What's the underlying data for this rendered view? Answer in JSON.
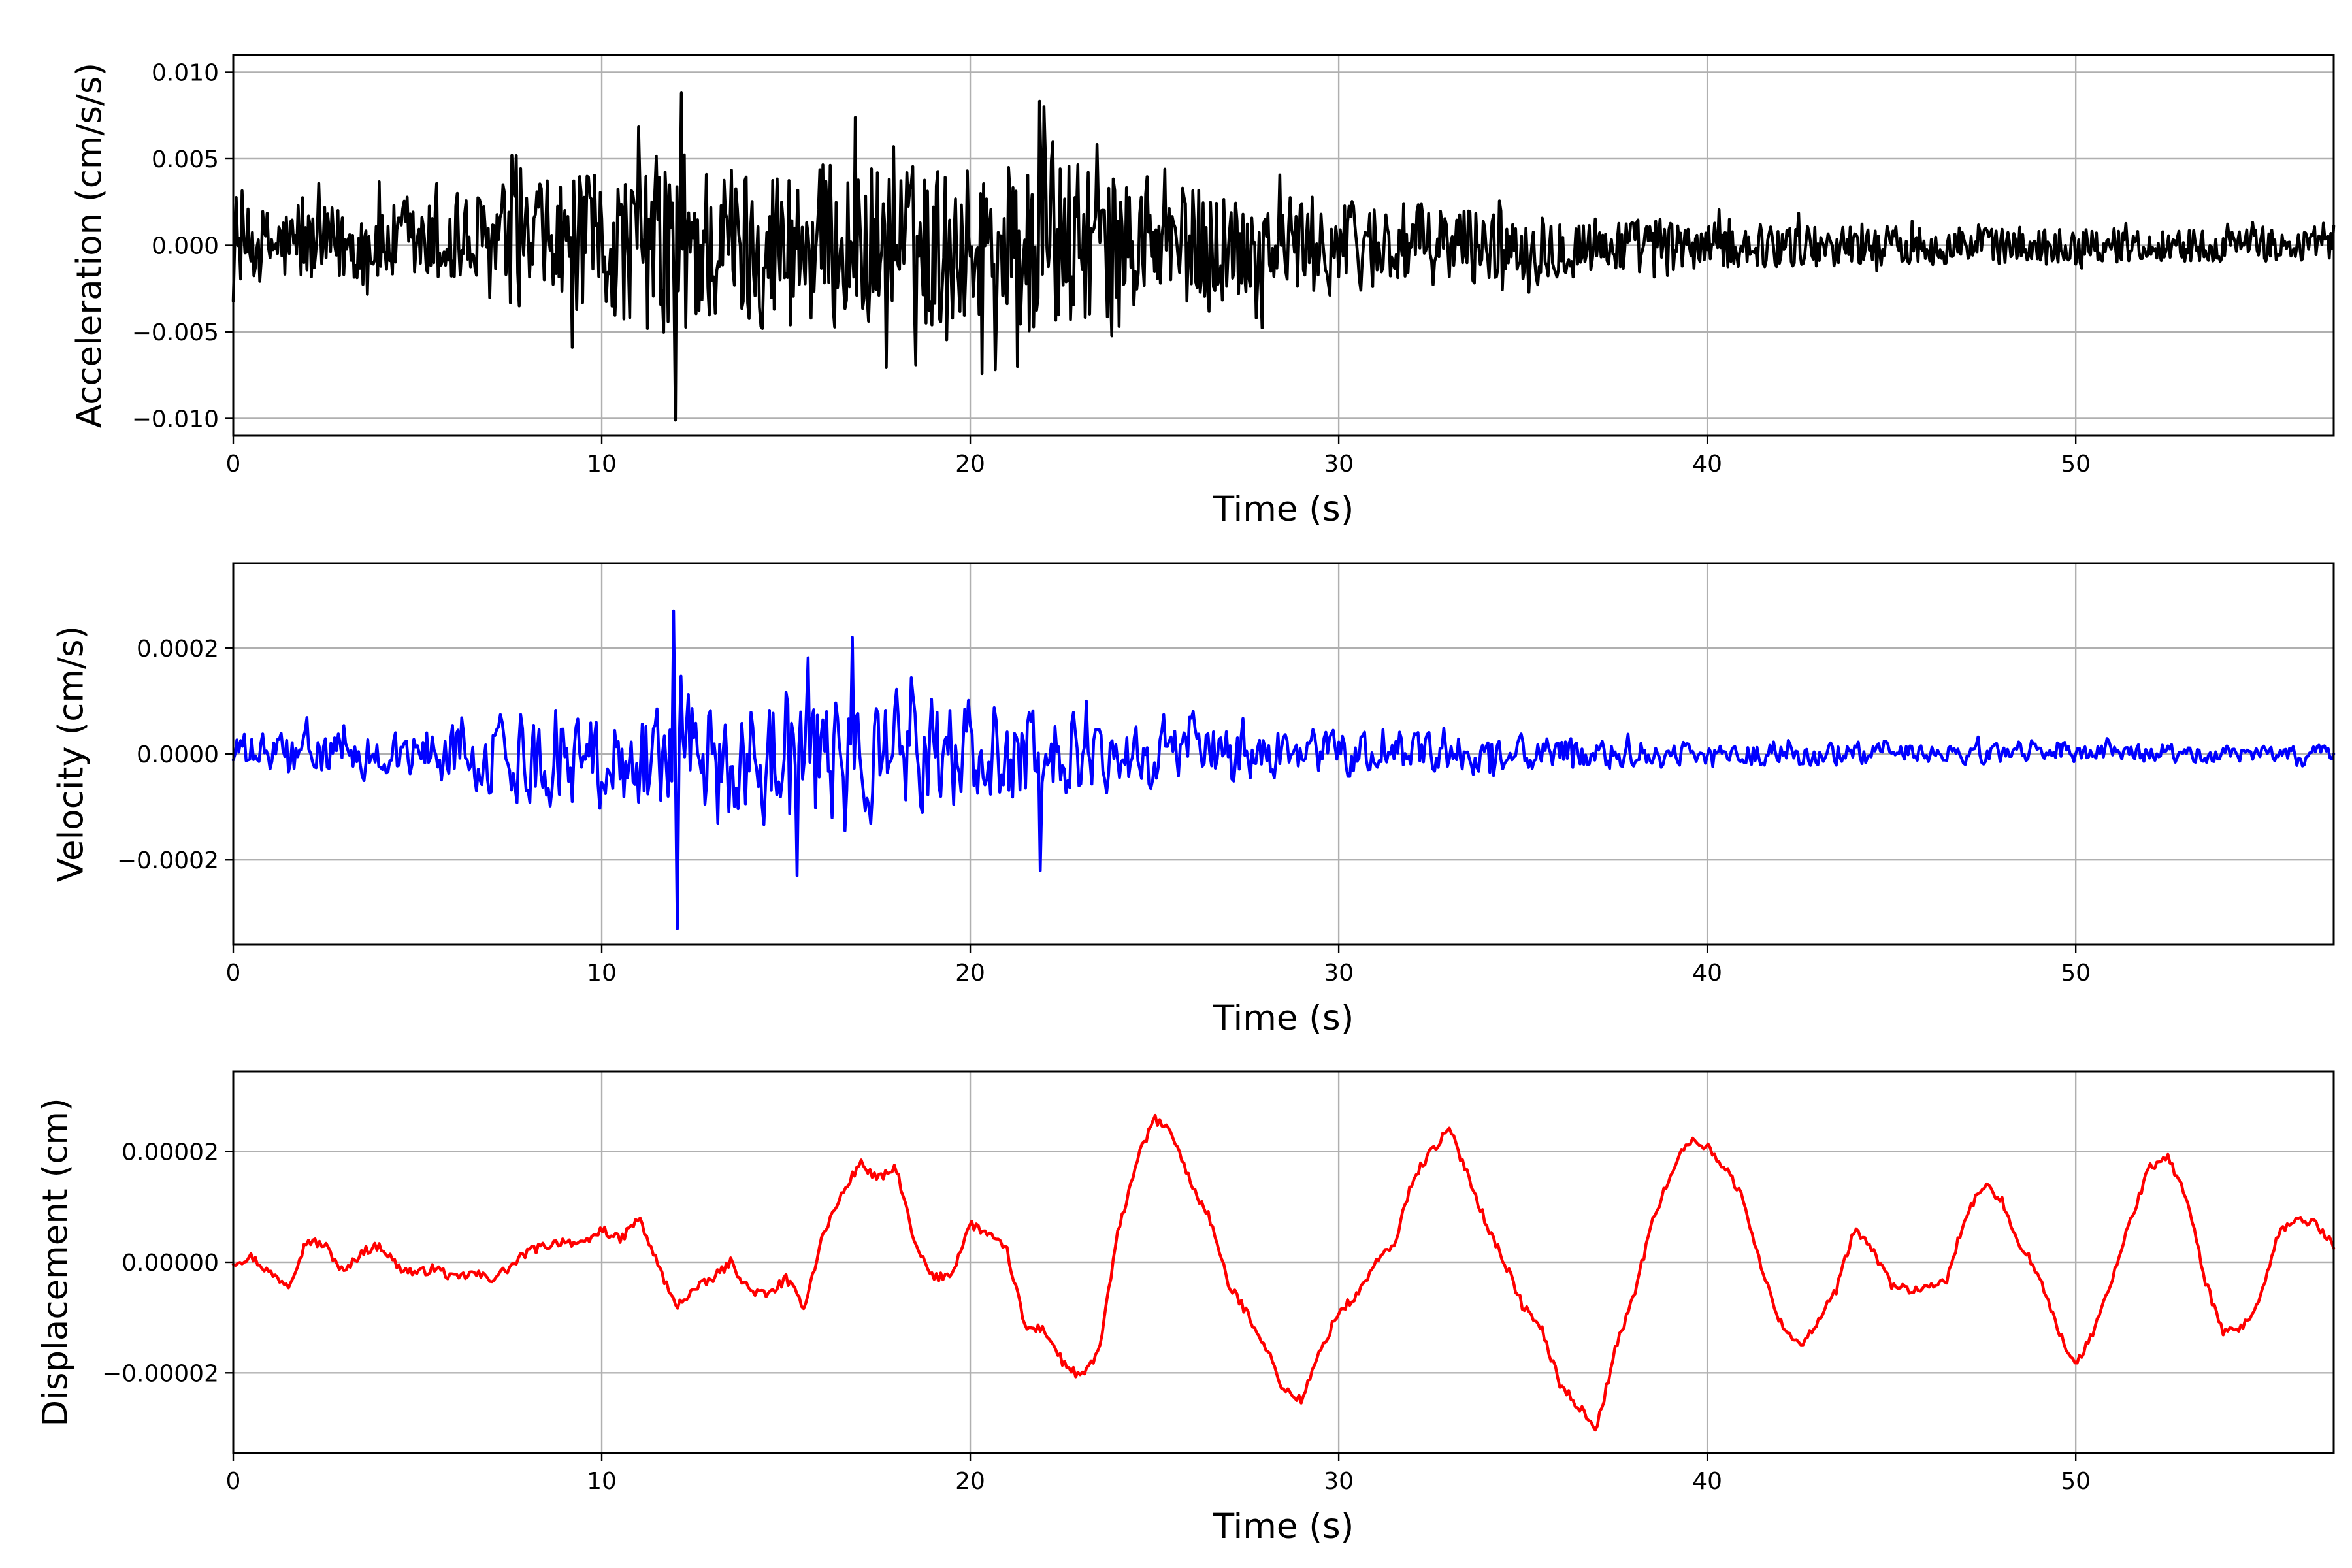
{
  "chart_data": [
    {
      "type": "line",
      "title": "",
      "xlabel": "Time (s)",
      "ylabel": "Acceleration (cm/s/s)",
      "xlim": [
        0,
        57
      ],
      "ylim": [
        -0.011,
        0.011
      ],
      "xticks": [
        0,
        10,
        20,
        30,
        40,
        50
      ],
      "xtick_labels": [
        "0",
        "10",
        "20",
        "30",
        "40",
        "50"
      ],
      "yticks": [
        -0.01,
        -0.005,
        0.0,
        0.005,
        0.01
      ],
      "ytick_labels": [
        "−0.010",
        "−0.005",
        "0.000",
        "0.005",
        "0.010"
      ],
      "grid": true,
      "series": [
        {
          "color": "#000000",
          "envelope": {
            "t": [
              0,
              5,
              8,
              11,
              12,
              13,
              17,
              20,
              22,
              24,
              28,
              33,
              40,
              50,
              57
            ],
            "amp": [
              0.0021,
              0.0024,
              0.0036,
              0.0045,
              0.0062,
              0.0048,
              0.0048,
              0.0046,
              0.0055,
              0.0038,
              0.003,
              0.0023,
              0.0013,
              0.001,
              0.0009
            ]
          },
          "peaks": [
            {
              "t": 12.0,
              "value": -0.0101
            },
            {
              "t": 12.15,
              "value": 0.0088
            },
            {
              "t": 22.0,
              "value": 0.008
            },
            {
              "t": 21.3,
              "value": -0.007
            }
          ]
        }
      ]
    },
    {
      "type": "line",
      "title": "",
      "xlabel": "Time (s)",
      "ylabel": "Velocity (cm/s)",
      "xlim": [
        0,
        57
      ],
      "ylim": [
        -0.00036,
        0.00036
      ],
      "xticks": [
        0,
        10,
        20,
        30,
        40,
        50
      ],
      "xtick_labels": [
        "0",
        "10",
        "20",
        "30",
        "40",
        "50"
      ],
      "yticks": [
        -0.0002,
        0.0,
        0.0002
      ],
      "ytick_labels": [
        "−0.0002",
        "0.0000",
        "0.0002"
      ],
      "grid": true,
      "series": [
        {
          "color": "#0000ff",
          "envelope": {
            "t": [
              0,
              5,
              8,
              11,
              12,
              13,
              17,
              20,
              22,
              24,
              28,
              33,
              40,
              50,
              57
            ],
            "amp": [
              5e-05,
              6e-05,
              0.00011,
              0.00014,
              0.00017,
              0.00015,
              0.00015,
              0.00014,
              0.00012,
              9e-05,
              6e-05,
              5e-05,
              3e-05,
              2.5e-05,
              2e-05
            ]
          },
          "peaks": [
            {
              "t": 11.95,
              "value": 0.00027
            },
            {
              "t": 12.05,
              "value": -0.00033
            },
            {
              "t": 16.8,
              "value": 0.00022
            },
            {
              "t": 15.3,
              "value": -0.00023
            },
            {
              "t": 21.9,
              "value": -0.00022
            }
          ]
        }
      ]
    },
    {
      "type": "line",
      "title": "",
      "xlabel": "Time (s)",
      "ylabel": "Displacement (cm)",
      "xlim": [
        0,
        57
      ],
      "ylim": [
        -3.45e-05,
        3.45e-05
      ],
      "xticks": [
        0,
        10,
        20,
        30,
        40,
        50
      ],
      "xtick_labels": [
        "0",
        "10",
        "20",
        "30",
        "40",
        "50"
      ],
      "yticks": [
        -2e-05,
        0.0,
        2e-05
      ],
      "ytick_labels": [
        "−0.00002",
        "0.00000",
        "0.00002"
      ],
      "grid": true,
      "series": [
        {
          "color": "#ff0000",
          "x": [
            0,
            0.5,
            1,
            1.5,
            2,
            2.5,
            3,
            3.5,
            4,
            4.5,
            5,
            5.5,
            6,
            6.5,
            7,
            7.5,
            8,
            8.5,
            9,
            9.5,
            10,
            10.5,
            11,
            11.5,
            12,
            12.5,
            13,
            13.5,
            14,
            14.5,
            15,
            15.5,
            16,
            16.5,
            17,
            17.5,
            18,
            18.5,
            19,
            19.5,
            20,
            20.5,
            21,
            21.5,
            22,
            22.5,
            23,
            23.5,
            24,
            24.5,
            25,
            25.5,
            26,
            26.5,
            27,
            27.5,
            28,
            28.5,
            29,
            29.5,
            30,
            30.5,
            31,
            31.5,
            32,
            32.5,
            33,
            33.5,
            34,
            34.5,
            35,
            35.5,
            36,
            36.5,
            37,
            37.5,
            38,
            38.5,
            39,
            39.5,
            40,
            40.5,
            41,
            41.5,
            42,
            42.5,
            43,
            43.5,
            44,
            44.5,
            45,
            45.5,
            46,
            46.5,
            47,
            47.5,
            48,
            48.5,
            49,
            49.5,
            50,
            50.5,
            51,
            51.5,
            52,
            52.5,
            53,
            53.5,
            54,
            54.5,
            55,
            55.5,
            56,
            56.5,
            57
          ],
          "y": [
            0.0,
            1e-06,
            -2e-06,
            -4e-06,
            4e-06,
            3e-06,
            -2e-06,
            2e-06,
            3e-06,
            -1e-06,
            -2e-06,
            -1e-06,
            -3e-06,
            -2e-06,
            -3e-06,
            -1e-06,
            2e-06,
            3e-06,
            4e-06,
            3e-06,
            6e-06,
            4e-06,
            8e-06,
            0.0,
            -8e-06,
            -5e-06,
            -3e-06,
            0.0,
            -5e-06,
            -6e-06,
            -3e-06,
            -8e-06,
            5e-06,
            1.2e-05,
            1.8e-05,
            1.5e-05,
            1.7e-05,
            3e-06,
            -3e-06,
            -2e-06,
            7e-06,
            5e-06,
            2e-06,
            -1.2e-05,
            -1.2e-05,
            -1.8e-05,
            -2.1e-05,
            -1.6e-05,
            5e-06,
            1.8e-05,
            2.6e-05,
            2.3e-05,
            1.4e-05,
            8e-06,
            -4e-06,
            -9e-06,
            -1.5e-05,
            -2.3e-05,
            -2.5e-05,
            -1.6e-05,
            -9e-06,
            -6e-06,
            0.0,
            3e-06,
            1.5e-05,
            2e-05,
            2.4e-05,
            1.6e-05,
            7e-06,
            0.0,
            -8e-06,
            -1.2e-05,
            -2.2e-05,
            -2.6e-05,
            -3e-05,
            -1.6e-05,
            -6e-06,
            7e-06,
            1.6e-05,
            2.2e-05,
            2.1e-05,
            1.7e-05,
            1.1e-05,
            -2e-06,
            -1.1e-05,
            -1.5e-05,
            -1.1e-05,
            -5e-06,
            6e-06,
            2e-06,
            -4e-06,
            -5e-06,
            -5e-06,
            -3e-06,
            8e-06,
            1.4e-05,
            1.1e-05,
            3e-06,
            -2e-06,
            -1.2e-05,
            -1.9e-05,
            -1.2e-05,
            -3e-06,
            8e-06,
            1.7e-05,
            1.9e-05,
            1.2e-05,
            -3e-06,
            -1.3e-05,
            -1.2e-05,
            -7e-06,
            5e-06,
            8e-06,
            7e-06,
            3e-06
          ]
        }
      ]
    }
  ]
}
